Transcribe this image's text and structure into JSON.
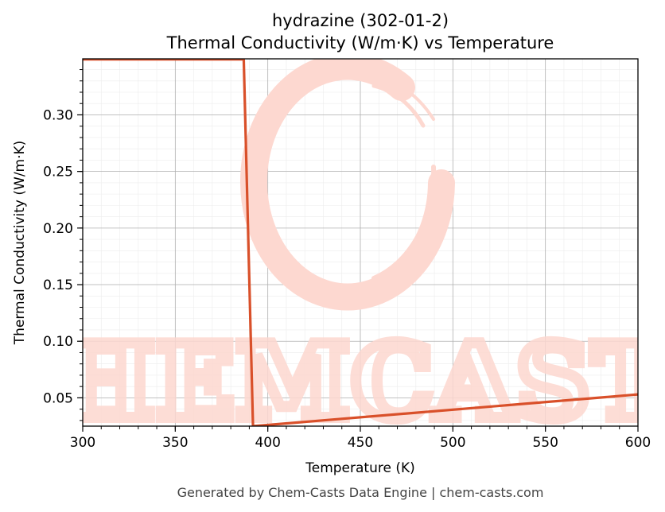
{
  "chart_data": {
    "type": "line",
    "title": "hydrazine (302-01-2)",
    "subtitle": "Thermal Conductivity (W/m·K) vs Temperature",
    "xlabel": "Temperature (K)",
    "ylabel": "Thermal Conductivity (W/m·K)",
    "xlim": [
      300,
      600
    ],
    "ylim": [
      0.025,
      0.3495
    ],
    "x_ticks": [
      300,
      350,
      400,
      450,
      500,
      550,
      600
    ],
    "y_ticks": [
      0.05,
      0.1,
      0.15,
      0.2,
      0.25,
      0.3
    ],
    "grid": true,
    "series": [
      {
        "color": "#d9502a",
        "x": [
          300,
          387,
          392,
          600
        ],
        "y": [
          0.349,
          0.349,
          0.025,
          0.053
        ]
      }
    ]
  },
  "watermark": {
    "text": "CHEMCASTS",
    "color": "#fdd8d0"
  },
  "footer": "Generated by Chem-Casts Data Engine | chem-casts.com"
}
